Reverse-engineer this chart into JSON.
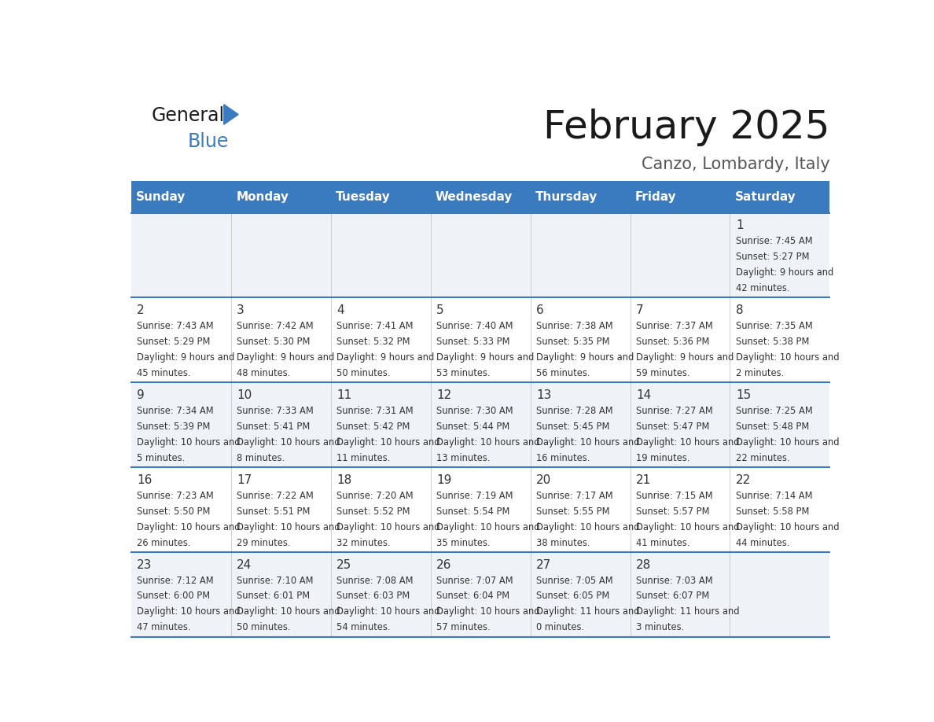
{
  "title": "February 2025",
  "subtitle": "Canzo, Lombardy, Italy",
  "header_color": "#3a7abf",
  "header_text_color": "#ffffff",
  "cell_bg_even": "#eff3f8",
  "cell_bg_odd": "#ffffff",
  "row_line_color": "#3a7abf",
  "day_headers": [
    "Sunday",
    "Monday",
    "Tuesday",
    "Wednesday",
    "Thursday",
    "Friday",
    "Saturday"
  ],
  "days": [
    {
      "day": 1,
      "col": 6,
      "row": 0,
      "sunrise": "7:45 AM",
      "sunset": "5:27 PM",
      "daylight": "9 hours and 42 minutes"
    },
    {
      "day": 2,
      "col": 0,
      "row": 1,
      "sunrise": "7:43 AM",
      "sunset": "5:29 PM",
      "daylight": "9 hours and 45 minutes"
    },
    {
      "day": 3,
      "col": 1,
      "row": 1,
      "sunrise": "7:42 AM",
      "sunset": "5:30 PM",
      "daylight": "9 hours and 48 minutes"
    },
    {
      "day": 4,
      "col": 2,
      "row": 1,
      "sunrise": "7:41 AM",
      "sunset": "5:32 PM",
      "daylight": "9 hours and 50 minutes"
    },
    {
      "day": 5,
      "col": 3,
      "row": 1,
      "sunrise": "7:40 AM",
      "sunset": "5:33 PM",
      "daylight": "9 hours and 53 minutes"
    },
    {
      "day": 6,
      "col": 4,
      "row": 1,
      "sunrise": "7:38 AM",
      "sunset": "5:35 PM",
      "daylight": "9 hours and 56 minutes"
    },
    {
      "day": 7,
      "col": 5,
      "row": 1,
      "sunrise": "7:37 AM",
      "sunset": "5:36 PM",
      "daylight": "9 hours and 59 minutes"
    },
    {
      "day": 8,
      "col": 6,
      "row": 1,
      "sunrise": "7:35 AM",
      "sunset": "5:38 PM",
      "daylight": "10 hours and 2 minutes"
    },
    {
      "day": 9,
      "col": 0,
      "row": 2,
      "sunrise": "7:34 AM",
      "sunset": "5:39 PM",
      "daylight": "10 hours and 5 minutes"
    },
    {
      "day": 10,
      "col": 1,
      "row": 2,
      "sunrise": "7:33 AM",
      "sunset": "5:41 PM",
      "daylight": "10 hours and 8 minutes"
    },
    {
      "day": 11,
      "col": 2,
      "row": 2,
      "sunrise": "7:31 AM",
      "sunset": "5:42 PM",
      "daylight": "10 hours and 11 minutes"
    },
    {
      "day": 12,
      "col": 3,
      "row": 2,
      "sunrise": "7:30 AM",
      "sunset": "5:44 PM",
      "daylight": "10 hours and 13 minutes"
    },
    {
      "day": 13,
      "col": 4,
      "row": 2,
      "sunrise": "7:28 AM",
      "sunset": "5:45 PM",
      "daylight": "10 hours and 16 minutes"
    },
    {
      "day": 14,
      "col": 5,
      "row": 2,
      "sunrise": "7:27 AM",
      "sunset": "5:47 PM",
      "daylight": "10 hours and 19 minutes"
    },
    {
      "day": 15,
      "col": 6,
      "row": 2,
      "sunrise": "7:25 AM",
      "sunset": "5:48 PM",
      "daylight": "10 hours and 22 minutes"
    },
    {
      "day": 16,
      "col": 0,
      "row": 3,
      "sunrise": "7:23 AM",
      "sunset": "5:50 PM",
      "daylight": "10 hours and 26 minutes"
    },
    {
      "day": 17,
      "col": 1,
      "row": 3,
      "sunrise": "7:22 AM",
      "sunset": "5:51 PM",
      "daylight": "10 hours and 29 minutes"
    },
    {
      "day": 18,
      "col": 2,
      "row": 3,
      "sunrise": "7:20 AM",
      "sunset": "5:52 PM",
      "daylight": "10 hours and 32 minutes"
    },
    {
      "day": 19,
      "col": 3,
      "row": 3,
      "sunrise": "7:19 AM",
      "sunset": "5:54 PM",
      "daylight": "10 hours and 35 minutes"
    },
    {
      "day": 20,
      "col": 4,
      "row": 3,
      "sunrise": "7:17 AM",
      "sunset": "5:55 PM",
      "daylight": "10 hours and 38 minutes"
    },
    {
      "day": 21,
      "col": 5,
      "row": 3,
      "sunrise": "7:15 AM",
      "sunset": "5:57 PM",
      "daylight": "10 hours and 41 minutes"
    },
    {
      "day": 22,
      "col": 6,
      "row": 3,
      "sunrise": "7:14 AM",
      "sunset": "5:58 PM",
      "daylight": "10 hours and 44 minutes"
    },
    {
      "day": 23,
      "col": 0,
      "row": 4,
      "sunrise": "7:12 AM",
      "sunset": "6:00 PM",
      "daylight": "10 hours and 47 minutes"
    },
    {
      "day": 24,
      "col": 1,
      "row": 4,
      "sunrise": "7:10 AM",
      "sunset": "6:01 PM",
      "daylight": "10 hours and 50 minutes"
    },
    {
      "day": 25,
      "col": 2,
      "row": 4,
      "sunrise": "7:08 AM",
      "sunset": "6:03 PM",
      "daylight": "10 hours and 54 minutes"
    },
    {
      "day": 26,
      "col": 3,
      "row": 4,
      "sunrise": "7:07 AM",
      "sunset": "6:04 PM",
      "daylight": "10 hours and 57 minutes"
    },
    {
      "day": 27,
      "col": 4,
      "row": 4,
      "sunrise": "7:05 AM",
      "sunset": "6:05 PM",
      "daylight": "11 hours and 0 minutes"
    },
    {
      "day": 28,
      "col": 5,
      "row": 4,
      "sunrise": "7:03 AM",
      "sunset": "6:07 PM",
      "daylight": "11 hours and 3 minutes"
    }
  ]
}
